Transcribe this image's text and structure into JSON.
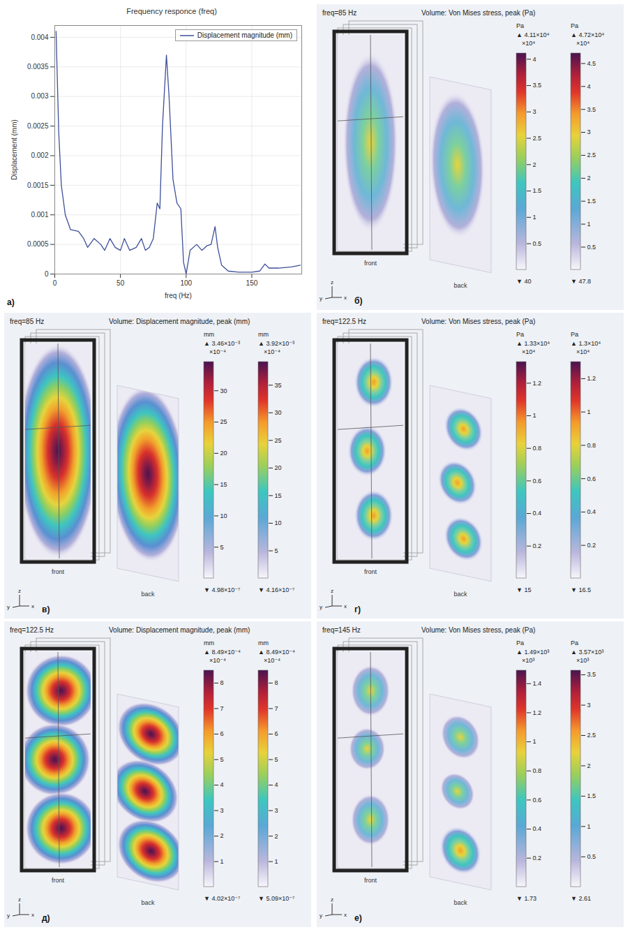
{
  "chart_data": {
    "type": "line",
    "panel_label": "a)",
    "title": "Frequency responce (freq)",
    "xlabel": "freq (Hz)",
    "ylabel": "Displacement (mm)",
    "x": [
      1,
      3,
      5,
      8,
      12,
      18,
      22,
      25,
      30,
      35,
      38,
      42,
      46,
      50,
      53,
      57,
      62,
      66,
      69,
      72,
      75,
      78,
      80,
      82,
      85,
      87,
      90,
      93,
      96,
      98,
      100,
      103,
      108,
      112,
      116,
      119,
      122,
      124,
      127,
      132,
      140,
      150,
      156,
      160,
      163,
      170,
      180,
      187
    ],
    "series": [
      {
        "name": "Displacement magnitude (mm)",
        "color": "#3d4f9a",
        "values": [
          0.0041,
          0.0024,
          0.0015,
          0.001,
          0.00075,
          0.00072,
          0.0006,
          0.00045,
          0.0006,
          0.0005,
          0.0004,
          0.0006,
          0.00045,
          0.0004,
          0.0006,
          0.0004,
          0.00045,
          0.0006,
          0.0004,
          0.00045,
          0.0006,
          0.0012,
          0.0011,
          0.0025,
          0.0037,
          0.003,
          0.0016,
          0.0012,
          0.0011,
          0.0002,
          0,
          0.0004,
          0.0005,
          0.0004,
          0.00048,
          0.0005,
          0.0008,
          0.00045,
          0.00015,
          5e-05,
          3e-05,
          3e-05,
          5e-05,
          0.00017,
          0.0001,
          0.0001,
          0.00012,
          0.00015
        ]
      }
    ],
    "xlim": [
      0,
      188
    ],
    "xticks": [
      0,
      50,
      100,
      150
    ],
    "ylim": [
      0,
      0.0042
    ],
    "yticks": [
      0,
      0.0005,
      0.001,
      0.0015,
      0.002,
      0.0025,
      0.003,
      0.0035,
      0.004
    ],
    "grid": true,
    "legend": "upper right"
  },
  "field_panels": [
    {
      "panel_label": "б)",
      "freq_label": "freq=85 Hz",
      "title": "Volume: Von Mises stress, peak (Pa)",
      "views": [
        "front",
        "back"
      ],
      "axes_labels": [
        "y",
        "z",
        "x"
      ],
      "color_bars": [
        {
          "unit": "Pa",
          "max_label": "▲ 4.11×10⁴",
          "exponent_label": "×10⁴",
          "min_label": "▼ 40",
          "range": [
            0.004,
            4.11
          ],
          "ticks": [
            0.5,
            1,
            1.5,
            2,
            2.5,
            3,
            3.5,
            4
          ]
        },
        {
          "unit": "Pa",
          "max_label": "▲ 4.72×10⁴",
          "exponent_label": "×10⁴",
          "min_label": "▼ 47.8",
          "range": [
            0.00478,
            4.72
          ],
          "ticks": [
            0.5,
            1,
            1.5,
            2,
            2.5,
            3,
            3.5,
            4,
            4.5
          ]
        }
      ]
    },
    {
      "panel_label": "в)",
      "freq_label": "freq=85 Hz",
      "title": "Volume: Displacement magnitude, peak (mm)",
      "views": [
        "front",
        "back"
      ],
      "axes_labels": [
        "y",
        "z",
        "x"
      ],
      "color_bars": [
        {
          "unit": "mm",
          "max_label": "▲ 3.46×10⁻³",
          "exponent_label": "×10⁻⁴",
          "min_label": "▼ 4.98×10⁻⁷",
          "range": [
            0.00498,
            34.6
          ],
          "ticks": [
            5,
            10,
            15,
            20,
            25,
            30
          ]
        },
        {
          "unit": "mm",
          "max_label": "▲ 3.92×10⁻³",
          "exponent_label": "×10⁻⁴",
          "min_label": "▼ 4.16×10⁻⁷",
          "range": [
            0.00416,
            39.2
          ],
          "ticks": [
            5,
            10,
            15,
            20,
            25,
            30,
            35
          ]
        }
      ]
    },
    {
      "panel_label": "г)",
      "freq_label": "freq=122.5 Hz",
      "title": "Volume: Von Mises stress, peak (Pa)",
      "views": [
        "front",
        "back"
      ],
      "axes_labels": [
        "y",
        "z",
        "x"
      ],
      "color_bars": [
        {
          "unit": "Pa",
          "max_label": "▲ 1.33×10⁴",
          "exponent_label": "×10⁴",
          "min_label": "▼ 15",
          "range": [
            0.0015,
            1.33
          ],
          "ticks": [
            0.2,
            0.4,
            0.6,
            0.8,
            1,
            1.2
          ]
        },
        {
          "unit": "Pa",
          "max_label": "▲ 1.3×10⁴",
          "exponent_label": "×10⁴",
          "min_label": "▼ 16.5",
          "range": [
            0.00165,
            1.3
          ],
          "ticks": [
            0.2,
            0.4,
            0.6,
            0.8,
            1,
            1.2
          ]
        }
      ]
    },
    {
      "panel_label": "д)",
      "freq_label": "freq=122.5 Hz",
      "title": "Volume: Displacement magnitude, peak (mm)",
      "views": [
        "front",
        "back"
      ],
      "axes_labels": [
        "y",
        "z",
        "x"
      ],
      "color_bars": [
        {
          "unit": "mm",
          "max_label": "▲ 8.49×10⁻⁴",
          "exponent_label": "×10⁻⁴",
          "min_label": "▼ 4.02×10⁻⁷",
          "range": [
            0.00402,
            8.49
          ],
          "ticks": [
            1,
            2,
            3,
            4,
            5,
            6,
            7,
            8
          ]
        },
        {
          "unit": "mm",
          "max_label": "▲ 8.49×10⁻⁴",
          "exponent_label": "×10⁻⁴",
          "min_label": "▼ 5.09×10⁻⁷",
          "range": [
            0.00509,
            8.49
          ],
          "ticks": [
            1,
            2,
            3,
            4,
            5,
            6,
            7,
            8
          ]
        }
      ]
    },
    {
      "panel_label": "е)",
      "freq_label": "freq=145 Hz",
      "title": "Volume: Von Mises stress, peak (Pa)",
      "views": [
        "front",
        "back"
      ],
      "axes_labels": [
        "y",
        "z",
        "x"
      ],
      "color_bars": [
        {
          "unit": "Pa",
          "max_label": "▲ 1.49×10³",
          "exponent_label": "×10³",
          "min_label": "▼ 1.73",
          "range": [
            0.00173,
            1.49
          ],
          "ticks": [
            0.2,
            0.4,
            0.6,
            0.8,
            1,
            1.2,
            1.4
          ]
        },
        {
          "unit": "Pa",
          "max_label": "▲ 3.57×10³",
          "exponent_label": "×10³",
          "min_label": "▼ 2.61",
          "range": [
            0.00261,
            3.57
          ],
          "ticks": [
            0.5,
            1,
            1.5,
            2,
            2.5,
            3,
            3.5
          ]
        }
      ]
    }
  ]
}
